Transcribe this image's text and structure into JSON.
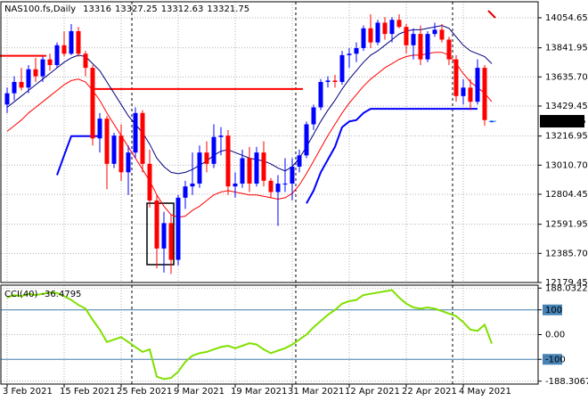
{
  "chart_data": [
    {
      "type": "candlestick",
      "title": "NAS100.fs,Daily",
      "categories": [
        "3 Feb 2021",
        null,
        null,
        null,
        null,
        null,
        null,
        null,
        "15 Feb 2021",
        null,
        null,
        null,
        null,
        null,
        null,
        null,
        "25 Feb 2021",
        null,
        null,
        null,
        null,
        null,
        null,
        null,
        "9 Mar 2021",
        null,
        null,
        null,
        null,
        null,
        null,
        null,
        "19 Mar 2021",
        null,
        null,
        null,
        null,
        null,
        null,
        null,
        "31 Mar 2021",
        null,
        null,
        null,
        null,
        null,
        null,
        null,
        "12 Apr 2021",
        null,
        null,
        null,
        null,
        null,
        null,
        null,
        "22 Apr 2021",
        null,
        null,
        null,
        null,
        null,
        null,
        null,
        "4 May 2021",
        null,
        null,
        null,
        null
      ],
      "open": [
        13440,
        13520,
        13600,
        13560,
        13690,
        13640,
        13760,
        13720,
        13860,
        13800,
        13960,
        13800,
        13700,
        13200,
        13340,
        13020,
        13220,
        12960,
        13100,
        13380,
        13020,
        12760,
        12420,
        12600,
        12340,
        12780,
        12860,
        12880,
        13100,
        13020,
        13210,
        13220,
        12860,
        12880,
        13060,
        12880,
        13100,
        12900,
        12820,
        12880,
        12880,
        13000,
        13080,
        13300,
        13420,
        13600,
        13610,
        13600,
        13790,
        13800,
        13840,
        13980,
        13880,
        14020,
        13940,
        14040,
        13990,
        13860,
        13940,
        13760,
        13940,
        13970,
        13900,
        13760,
        13500,
        13560,
        13460,
        13700,
        13316.0
      ],
      "high": [
        13560,
        13640,
        13700,
        13720,
        13770,
        13780,
        13800,
        13880,
        13960,
        14010,
        13990,
        13820,
        13720,
        13380,
        13360,
        13240,
        13300,
        13150,
        13420,
        13400,
        13120,
        12800,
        12680,
        12660,
        12800,
        12900,
        13100,
        13150,
        13180,
        13300,
        13280,
        13260,
        12960,
        13120,
        13140,
        13140,
        13180,
        12920,
        12940,
        13060,
        13060,
        13120,
        13320,
        13440,
        13620,
        13640,
        13650,
        13820,
        13840,
        13880,
        14000,
        14080,
        14040,
        14060,
        14060,
        14080,
        14010,
        13980,
        14000,
        13960,
        14020,
        14010,
        13920,
        13790,
        13620,
        13620,
        13760,
        13720,
        13327.25
      ],
      "low": [
        13380,
        13470,
        13540,
        13520,
        13600,
        13600,
        13680,
        13700,
        13780,
        13790,
        13780,
        13640,
        13150,
        13100,
        12840,
        12990,
        12900,
        12800,
        13060,
        12960,
        12710,
        12280,
        12250,
        12240,
        12300,
        12700,
        12800,
        12850,
        12960,
        12990,
        13080,
        12800,
        12780,
        12850,
        12820,
        12860,
        12860,
        12780,
        12580,
        12820,
        12760,
        12960,
        13060,
        13260,
        13400,
        13560,
        13560,
        13580,
        13700,
        13740,
        13820,
        13840,
        13860,
        13900,
        13880,
        13980,
        13800,
        13760,
        13720,
        13740,
        13920,
        13880,
        13720,
        13460,
        13440,
        13400,
        13440,
        13290,
        13312.63
      ],
      "close": [
        13520,
        13600,
        13560,
        13690,
        13640,
        13760,
        13720,
        13860,
        13800,
        13960,
        13800,
        13700,
        13200,
        13340,
        13020,
        13220,
        12960,
        13100,
        13380,
        13020,
        12760,
        12420,
        12600,
        12340,
        12780,
        12860,
        12880,
        13100,
        13020,
        13210,
        13220,
        12860,
        12880,
        13060,
        12880,
        13100,
        12900,
        12820,
        12880,
        12880,
        13000,
        13080,
        13300,
        13420,
        13600,
        13610,
        13600,
        13790,
        13800,
        13840,
        13980,
        13880,
        14020,
        13940,
        14040,
        13990,
        13860,
        13940,
        13760,
        13940,
        13970,
        13900,
        13760,
        13500,
        13560,
        13460,
        13700,
        13330,
        13321.75
      ],
      "up_color": "#0000ff",
      "down_color": "#ff0000",
      "series": [
        {
          "color": "#000080",
          "values": [
            13420,
            13460,
            13500,
            13540,
            13580,
            13620,
            13660,
            13700,
            13740,
            13770,
            13790,
            13780,
            13730,
            13680,
            13600,
            13520,
            13440,
            13360,
            13300,
            13240,
            13160,
            13060,
            13000,
            12960,
            12950,
            12960,
            12980,
            13010,
            13040,
            13080,
            13110,
            13120,
            13100,
            13080,
            13060,
            13050,
            13040,
            13020,
            12990,
            12970,
            13000,
            13060,
            13140,
            13230,
            13320,
            13400,
            13470,
            13550,
            13620,
            13680,
            13740,
            13790,
            13820,
            13860,
            13900,
            13940,
            13960,
            13970,
            13970,
            13980,
            13990,
            14000,
            13980,
            13920,
            13860,
            13820,
            13800,
            13780,
            13730
          ]
        },
        {
          "color": "#ff0000",
          "values": [
            13250,
            13290,
            13330,
            13380,
            13420,
            13460,
            13500,
            13540,
            13580,
            13610,
            13620,
            13600,
            13540,
            13470,
            13380,
            13300,
            13220,
            13140,
            13060,
            12980,
            12900,
            12800,
            12720,
            12660,
            12640,
            12650,
            12690,
            12720,
            12760,
            12800,
            12820,
            12830,
            12820,
            12810,
            12800,
            12800,
            12790,
            12780,
            12770,
            12780,
            12810,
            12870,
            12950,
            13040,
            13130,
            13220,
            13300,
            13380,
            13450,
            13510,
            13570,
            13620,
            13660,
            13700,
            13730,
            13760,
            13780,
            13790,
            13790,
            13800,
            13810,
            13810,
            13790,
            13730,
            13660,
            13600,
            13560,
            13520,
            13460
          ]
        },
        {
          "color": "#0000ff",
          "values": [
            null,
            null,
            null,
            null,
            null,
            null,
            null,
            12940,
            13080,
            13216,
            13216,
            13216,
            13216,
            13216,
            null,
            null,
            null,
            null,
            null,
            null,
            null,
            null,
            null,
            null,
            null,
            null,
            null,
            null,
            null,
            null,
            null,
            null,
            null,
            null,
            null,
            null,
            null,
            null,
            null,
            null,
            null,
            null,
            12740,
            12830,
            12960,
            13050,
            13140,
            13280,
            13320,
            13330,
            13380,
            13410,
            13410,
            13410,
            13410,
            13410,
            13410,
            13410,
            13410,
            13410,
            13410,
            13410,
            13410,
            13410,
            13410,
            13410,
            13410,
            null,
            null
          ]
        }
      ],
      "hlines": [
        {
          "value": 13785,
          "x": [
            0,
            5
          ],
          "color": "#ff0000"
        },
        {
          "value": 13550,
          "x": [
            13,
            41
          ],
          "color": "#ff0000"
        }
      ],
      "box": {
        "x": [
          20,
          23
        ],
        "y": [
          12306,
          12741
        ]
      },
      "separators": [
        18,
        41,
        63
      ],
      "ylim": [
        12179.45,
        14168
      ],
      "yticks": [
        14054.65,
        13841.95,
        {
          "value": 13635.7,
          "label": "13635.70"
        },
        13429.45,
        13216.95,
        {
          "value": 13010.7,
          "label": "13010.70"
        },
        12804.45,
        12591.95,
        {
          "value": 12385.7,
          "label": "12385.70"
        },
        12179.45
      ],
      "grid": true
    },
    {
      "type": "line",
      "title": "CCI(40)",
      "color": "#80e000",
      "values": [
        150,
        160,
        155,
        165,
        160,
        165,
        170,
        168,
        155,
        140,
        120,
        105,
        60,
        20,
        -30,
        -20,
        -10,
        -30,
        -50,
        -70,
        -60,
        -170,
        -180,
        -175,
        -150,
        -110,
        -85,
        -75,
        -70,
        -60,
        -50,
        -45,
        -55,
        -45,
        -35,
        -40,
        -60,
        -75,
        -65,
        -55,
        -40,
        -20,
        0,
        30,
        55,
        80,
        100,
        125,
        135,
        140,
        160,
        165,
        170,
        175,
        180,
        150,
        125,
        110,
        105,
        110,
        105,
        95,
        85,
        75,
        50,
        20,
        15,
        40,
        -36.4795
      ],
      "levels": [
        100,
        -100
      ],
      "level_color": "#4682b4",
      "ylim": [
        -200,
        200
      ],
      "yticks": [
        188.0322,
        100,
        {
          "value": 0,
          "label": "0.00"
        },
        -100,
        -188.3067
      ],
      "grid": true
    }
  ]
}
